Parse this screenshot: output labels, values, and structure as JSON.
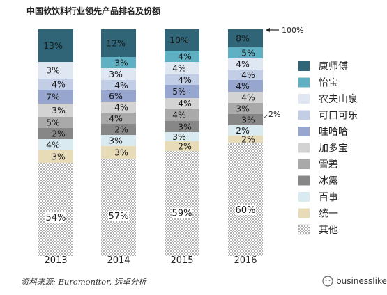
{
  "chart_data": {
    "type": "bar",
    "stacked": true,
    "title": "中国软饮料行业领先产品排名及份额",
    "categories": [
      "2013",
      "2014",
      "2015",
      "2016"
    ],
    "series": [
      {
        "name": "康师傅",
        "color": "#2f6577",
        "values": [
          13,
          12,
          10,
          8
        ]
      },
      {
        "name": "怡宝",
        "color": "#5fb0c2",
        "values": [
          null,
          3,
          4,
          5
        ]
      },
      {
        "name": "农夫山泉",
        "color": "#dfe7f3",
        "values": [
          3,
          3,
          4,
          4
        ]
      },
      {
        "name": "可口可乐",
        "color": "#c2cde6",
        "values": [
          4,
          4,
          4,
          4
        ]
      },
      {
        "name": "哇哈哈",
        "color": "#97a6cf",
        "values": [
          7,
          6,
          5,
          4
        ]
      },
      {
        "name": "加多宝",
        "color": "#d3d3d3",
        "values": [
          3,
          4,
          4,
          4
        ]
      },
      {
        "name": "雪碧",
        "color": "#a9a9a9",
        "values": [
          5,
          4,
          4,
          3
        ]
      },
      {
        "name": "冰露",
        "color": "#878787",
        "values": [
          2,
          2,
          3,
          3
        ]
      },
      {
        "name": "百事",
        "color": "#d9ebf1",
        "values": [
          4,
          3,
          3,
          2
        ]
      },
      {
        "name": "统一",
        "color": "#e8dcb8",
        "values": [
          3,
          3,
          2,
          2
        ]
      },
      {
        "name": "其他",
        "color": "#ffffff",
        "pattern": "dotted",
        "values": [
          54,
          57,
          59,
          60
        ]
      }
    ],
    "annotations": [
      "100%",
      "2%"
    ],
    "legend": "right",
    "grid": false
  },
  "source": "资料来源: Euromonitor, 远卓分析",
  "watermark": "businesslike"
}
